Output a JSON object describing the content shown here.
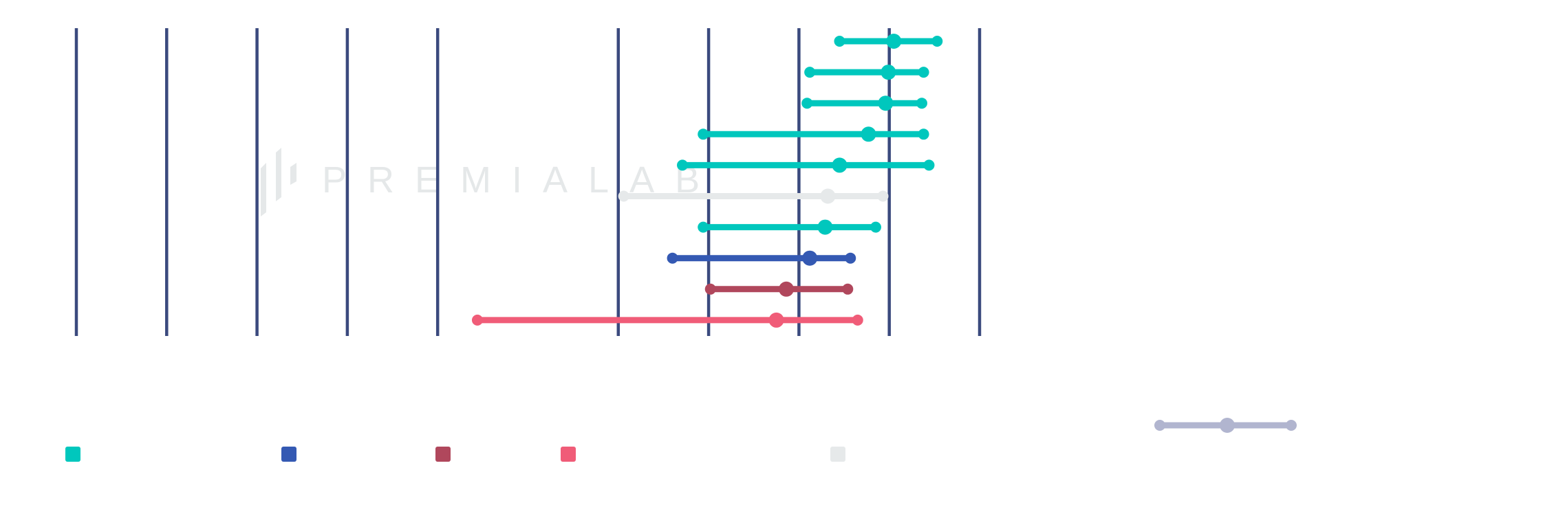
{
  "watermark": {
    "text": "PREMIALAB",
    "color": "#e5e8e9"
  },
  "colors": {
    "grid_line": "#3b4a7e",
    "teal": "#00c7bd",
    "blue": "#3459b3",
    "maroon": "#b0475c",
    "pink": "#f05c78",
    "light_grey": "#e6e9ea",
    "legend_range_icon": "#b1b5cf"
  },
  "chart_data": {
    "type": "range-dot",
    "title": "",
    "xlabel": "",
    "ylabel": "",
    "axis_labels_visible": false,
    "x_axis_note": "Tick labels not rendered; values expressed in grid-line units (vertical grid lines = ticks 0..10, tick 5 line not visible)",
    "xlim": [
      0,
      10
    ],
    "ticks": [
      0,
      1,
      2,
      3,
      4,
      5,
      6,
      7,
      8,
      9,
      10
    ],
    "hidden_ticks": [
      5
    ],
    "grid": true,
    "rows": [
      {
        "series": "teal",
        "min": 8.45,
        "value": 9.05,
        "max": 9.53
      },
      {
        "series": "teal",
        "min": 8.12,
        "value": 8.99,
        "max": 9.38
      },
      {
        "series": "teal",
        "min": 8.09,
        "value": 8.96,
        "max": 9.36
      },
      {
        "series": "teal",
        "min": 6.94,
        "value": 8.77,
        "max": 9.38
      },
      {
        "series": "teal",
        "min": 6.71,
        "value": 8.45,
        "max": 9.44
      },
      {
        "series": "light_grey",
        "min": 6.06,
        "value": 8.32,
        "max": 8.93
      },
      {
        "series": "teal",
        "min": 6.94,
        "value": 8.29,
        "max": 8.85
      },
      {
        "series": "blue",
        "min": 6.6,
        "value": 8.12,
        "max": 8.57
      },
      {
        "series": "maroon",
        "min": 7.02,
        "value": 7.86,
        "max": 8.54
      },
      {
        "series": "pink",
        "min": 4.44,
        "value": 7.75,
        "max": 8.65
      }
    ],
    "legend": {
      "position": "bottom",
      "entries": [
        {
          "series": "teal",
          "label": ""
        },
        {
          "series": "blue",
          "label": ""
        },
        {
          "series": "maroon",
          "label": ""
        },
        {
          "series": "pink",
          "label": ""
        },
        {
          "series": "light_grey",
          "label": ""
        }
      ],
      "range_icon": {
        "label": ""
      }
    }
  }
}
